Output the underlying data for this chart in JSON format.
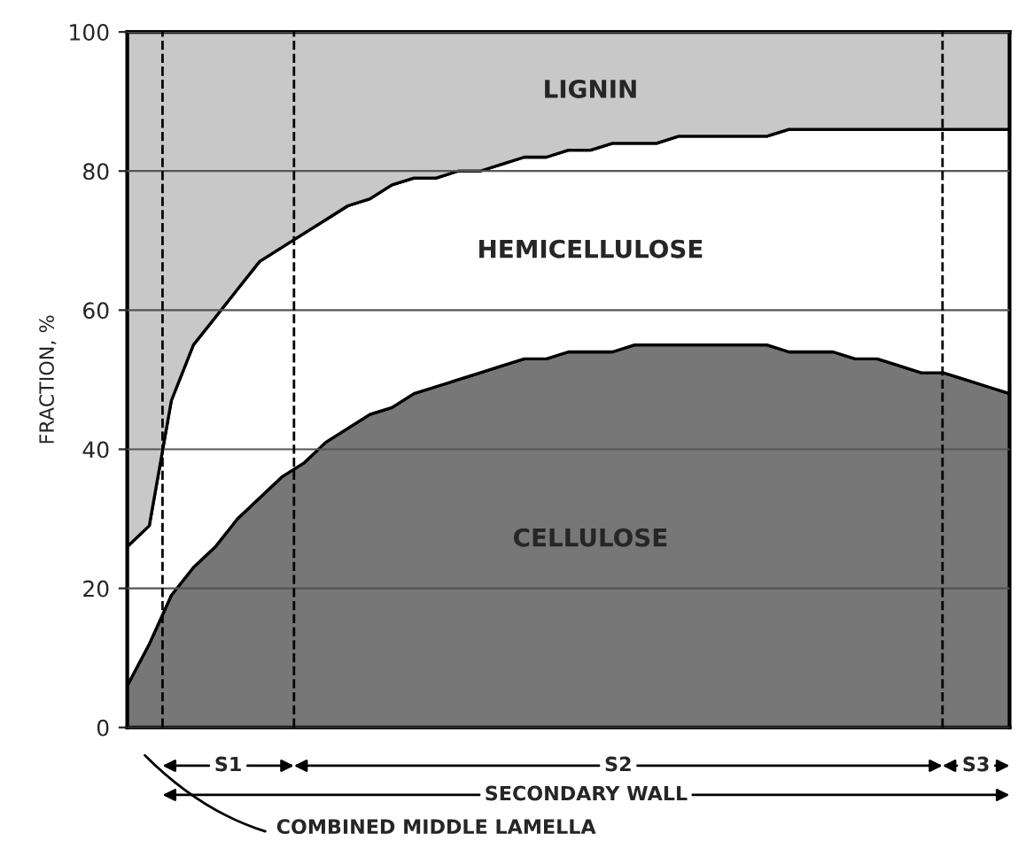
{
  "chart_data": {
    "type": "area",
    "stacked": true,
    "ylabel": "FRACTION, %",
    "categories": [
      null,
      null,
      null,
      null,
      null,
      null,
      null,
      null,
      null,
      null,
      null,
      null,
      null,
      null,
      null,
      null,
      null,
      null,
      null,
      null,
      null,
      null,
      null,
      null,
      null,
      null,
      null,
      null,
      null,
      null,
      null,
      null,
      null,
      null,
      null,
      null,
      null,
      null,
      null,
      null,
      null
    ],
    "series": [
      {
        "name": "CELLULOSE",
        "color": "#777777",
        "values": [
          6,
          12,
          19,
          23,
          26,
          30,
          33,
          36,
          38,
          41,
          43,
          45,
          46,
          48,
          49,
          50,
          51,
          52,
          53,
          53,
          54,
          54,
          54,
          55,
          55,
          55,
          55,
          55,
          55,
          55,
          54,
          54,
          54,
          53,
          53,
          52,
          51,
          51,
          50,
          49,
          48
        ]
      },
      {
        "name": "HEMICELLULOSE",
        "color": "#ffffff",
        "values": [
          20,
          17,
          28,
          32,
          33,
          33,
          34,
          33,
          33,
          32,
          32,
          31,
          32,
          31,
          30,
          30,
          29,
          29,
          29,
          29,
          29,
          29,
          30,
          29,
          29,
          30,
          30,
          30,
          30,
          30,
          32,
          32,
          32,
          33,
          33,
          34,
          35,
          35,
          36,
          37,
          38
        ]
      },
      {
        "name": "LIGNIN",
        "color": "#c8c8c8",
        "values": [
          74,
          71,
          53,
          45,
          41,
          37,
          33,
          31,
          29,
          27,
          25,
          24,
          22,
          21,
          21,
          20,
          20,
          19,
          18,
          18,
          17,
          17,
          16,
          16,
          16,
          15,
          15,
          15,
          15,
          15,
          14,
          14,
          14,
          14,
          14,
          14,
          14,
          14,
          14,
          14,
          14
        ]
      }
    ],
    "ylim": [
      0,
      100
    ],
    "yticks": [
      0,
      20,
      40,
      60,
      80,
      100
    ],
    "tick_labels": "y",
    "grid": "y",
    "legend": false,
    "annotations": [
      "S1",
      "S2",
      "S3",
      "SECONDARY WALL",
      "COMBINED MIDDLE LAMELLA"
    ]
  }
}
